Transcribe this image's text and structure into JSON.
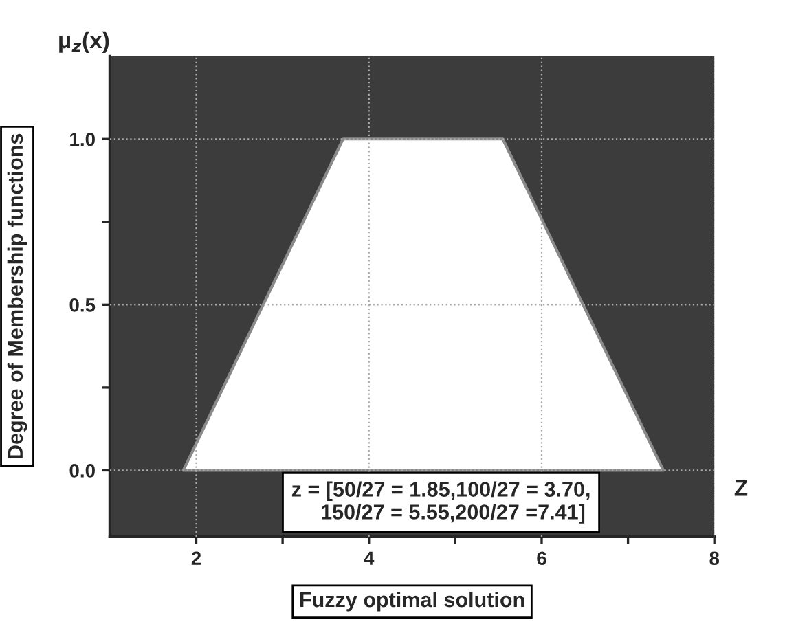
{
  "chart_data": {
    "type": "area",
    "xlabel": "Fuzzy optimal solution",
    "ylabel": "Degree of Membership functions",
    "annotations": [
      "μ$_{z}$(x)",
      "Z",
      "z = [50/27 = 1.85,100/27 = 3.70,\n     150/27 = 5.55,200/27 =7.41]"
    ],
    "x": [
      1.85,
      3.7,
      5.55,
      7.41
    ],
    "series": [
      {
        "color": "#ffffff",
        "values": [
          0,
          1,
          1,
          0
        ]
      }
    ],
    "xlim": [
      1,
      8
    ],
    "ylim": [
      -0.2,
      1.25
    ],
    "xticks": [
      2,
      {
        "value": 3,
        "label": null
      },
      4,
      {
        "value": 5,
        "label": null
      },
      6,
      {
        "value": 7,
        "label": null
      },
      8
    ],
    "yticks": [
      {
        "value": 0,
        "label": "0.0"
      },
      {
        "value": 0.25,
        "label": null
      },
      0.5,
      {
        "value": 0.75,
        "label": null
      },
      {
        "value": 1,
        "label": "1.0"
      }
    ],
    "grid": true,
    "legend": false
  }
}
